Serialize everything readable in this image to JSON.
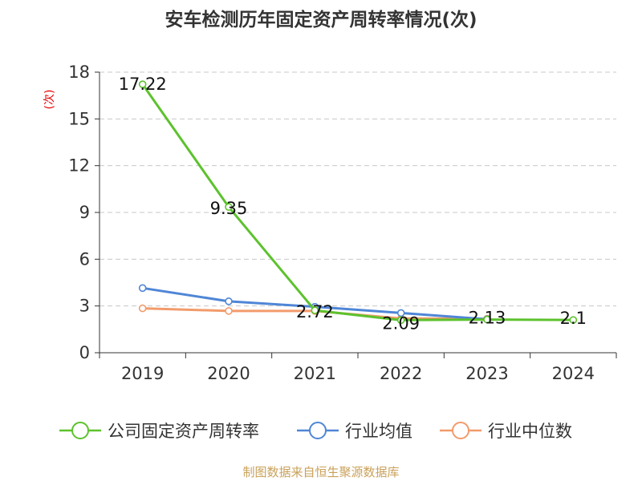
{
  "chart_data": {
    "type": "line",
    "title": "安车检测历年固定资产周转率情况(次)",
    "ylabel": "(次)",
    "xlabel": "",
    "categories": [
      "2019",
      "2020",
      "2021",
      "2022",
      "2023",
      "2024"
    ],
    "ylim": [
      0,
      18
    ],
    "yticks": [
      0,
      3,
      6,
      9,
      12,
      15,
      18
    ],
    "grid": true,
    "legend_position": "bottom",
    "series": [
      {
        "name": "公司固定资产周转率",
        "color": "#5cc22d",
        "values": [
          17.22,
          9.35,
          2.72,
          2.09,
          2.13,
          2.1
        ],
        "labels": [
          "17.22",
          "9.35",
          "2.72",
          "2.09",
          "2.13",
          "2.1"
        ]
      },
      {
        "name": "行业均值",
        "color": "#4f86d6",
        "values": [
          4.15,
          3.3,
          2.95,
          2.55,
          2.15,
          null
        ]
      },
      {
        "name": "行业中位数",
        "color": "#f29b6b",
        "values": [
          2.85,
          2.68,
          2.68,
          2.2,
          2.18,
          null
        ]
      }
    ],
    "source": "制图数据来自恒生聚源数据库"
  }
}
